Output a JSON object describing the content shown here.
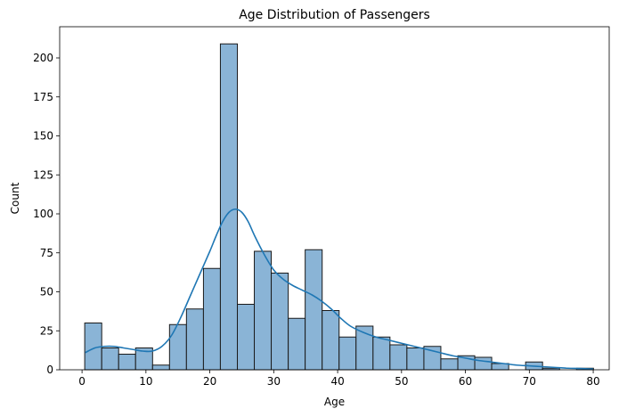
{
  "chart_data": {
    "type": "bar",
    "title": "Age Distribution of Passengers",
    "xlabel": "Age",
    "ylabel": "Count",
    "xlim": [
      -3.5,
      82.5
    ],
    "ylim": [
      0,
      220
    ],
    "xticks": [
      0,
      10,
      20,
      30,
      40,
      50,
      60,
      70,
      80
    ],
    "yticks": [
      0,
      25,
      50,
      75,
      100,
      125,
      150,
      175,
      200
    ],
    "grid": false,
    "bin_edges": [
      0.42,
      3.08,
      5.73,
      8.38,
      11.04,
      13.69,
      16.34,
      19.0,
      21.65,
      24.31,
      26.96,
      29.61,
      32.27,
      34.92,
      37.58,
      40.23,
      42.88,
      45.54,
      48.19,
      50.84,
      53.5,
      56.15,
      58.81,
      61.46,
      64.11,
      66.77,
      69.42,
      72.07,
      74.73,
      77.38,
      80.04
    ],
    "series": [
      {
        "type": "histogram",
        "counts": [
          30,
          14,
          10,
          14,
          3,
          29,
          39,
          65,
          209,
          42,
          76,
          62,
          33,
          77,
          38,
          21,
          28,
          21,
          16,
          14,
          15,
          7,
          9,
          8,
          4,
          0,
          5,
          1,
          0,
          1
        ],
        "color": "#8ab4d6",
        "edgecolor": "#1a1a1a"
      },
      {
        "type": "kde",
        "x": [
          0.5,
          2,
          3.5,
          5,
          6.5,
          8,
          9.5,
          11,
          12.5,
          14,
          15.5,
          17,
          18.5,
          20,
          21,
          22,
          23,
          24,
          25,
          26,
          27,
          28.5,
          30,
          31.5,
          33,
          34.5,
          36,
          37.5,
          39,
          40.5,
          42,
          44,
          46,
          48,
          50,
          52,
          54,
          56,
          58,
          60,
          62,
          64,
          66,
          68,
          70,
          72,
          74,
          76,
          78,
          80
        ],
        "y": [
          11,
          14,
          15,
          15,
          14,
          13,
          12,
          12,
          15,
          22,
          34,
          48,
          62,
          76,
          86,
          95,
          101,
          103,
          101,
          95,
          86,
          74,
          64,
          58,
          54,
          51,
          48,
          44,
          39,
          33,
          28,
          24,
          21,
          19,
          17,
          15,
          13,
          11,
          9,
          7.5,
          6,
          5,
          4,
          3,
          2.5,
          2,
          1.5,
          1,
          0.8,
          0.5
        ],
        "color": "#1f77b4"
      }
    ]
  }
}
